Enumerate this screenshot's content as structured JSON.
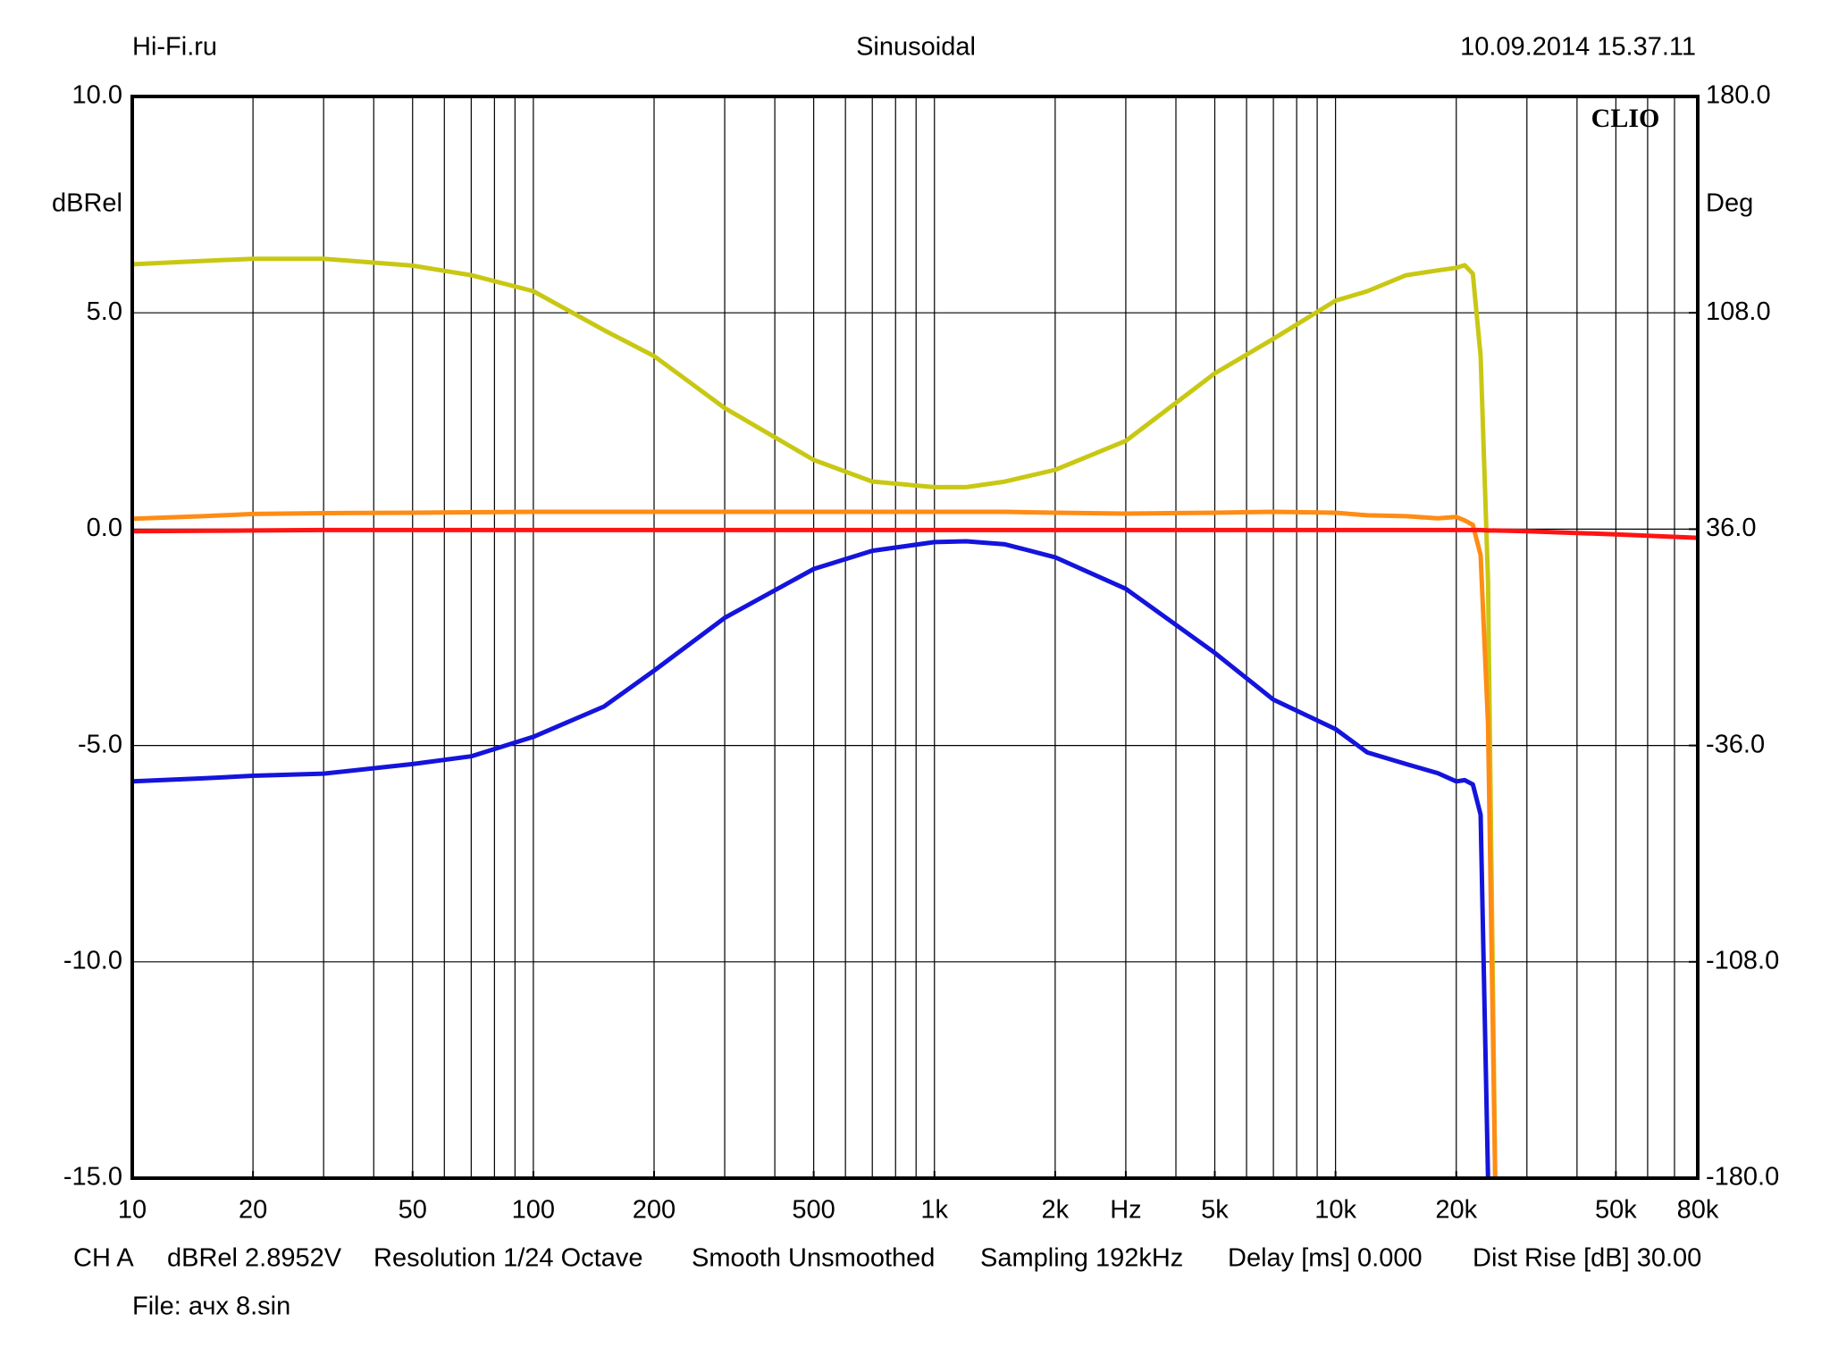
{
  "chart_data": {
    "type": "line",
    "header_left": "Hi-Fi.ru",
    "title": "Sinusoidal",
    "date": "10.09.2014 15.37.11",
    "logo": "CLIO",
    "ylabel": "dBRel",
    "y2label": "Deg",
    "footer": [
      "CH A",
      "dBRel 2.8952V",
      "Resolution 1/24 Octave",
      "Smooth Unsmoothed",
      "Sampling 192kHz",
      "Delay [ms] 0.000",
      "Dist Rise [dB] 30.00"
    ],
    "file": "File: ачх 8.sin",
    "xscale": "log",
    "grid": true,
    "xlim": [
      10,
      80000
    ],
    "xticks": [
      10,
      20,
      50,
      100,
      200,
      500,
      {
        "value": 1000,
        "label": "1k"
      },
      {
        "value": 2000,
        "label": "2k"
      },
      {
        "value": 3000,
        "label": "Hz"
      },
      {
        "value": 5000,
        "label": "5k"
      },
      {
        "value": 10000,
        "label": "10k"
      },
      {
        "value": 20000,
        "label": "20k"
      },
      {
        "value": 50000,
        "label": "50k"
      },
      {
        "value": 80000,
        "label": "80k"
      }
    ],
    "xgrid": [
      20,
      30,
      40,
      50,
      60,
      70,
      80,
      90,
      100,
      200,
      300,
      400,
      500,
      600,
      700,
      800,
      900,
      1000,
      2000,
      3000,
      4000,
      5000,
      6000,
      7000,
      8000,
      9000,
      10000,
      20000,
      30000,
      40000,
      50000,
      60000,
      70000
    ],
    "ylim": [
      -15,
      10
    ],
    "yticks": [
      {
        "value": -15,
        "label": "-15.0"
      },
      {
        "value": -10,
        "label": "-10.0"
      },
      {
        "value": -5,
        "label": "-5.0"
      },
      {
        "value": 0,
        "label": "0.0"
      },
      {
        "value": 5,
        "label": "5.0"
      },
      {
        "value": 10,
        "label": "10.0"
      }
    ],
    "y2lim": [
      -180,
      180
    ],
    "y2ticks": [
      {
        "value": -180,
        "label": "-180.0"
      },
      {
        "value": -108,
        "label": "-108.0"
      },
      {
        "value": -36,
        "label": "-36.0"
      },
      {
        "value": 36,
        "label": "36.0"
      },
      {
        "value": 108,
        "label": "108.0"
      },
      {
        "value": 180,
        "label": "180.0"
      }
    ],
    "x": [
      10,
      15,
      20,
      30,
      50,
      70,
      100,
      150,
      200,
      300,
      500,
      700,
      1000,
      1200,
      1500,
      2000,
      3000,
      5000,
      7000,
      10000,
      12000,
      15000,
      18000,
      20000,
      21000,
      22000,
      23000,
      24000,
      25000,
      30000,
      50000,
      80000
    ],
    "series": [
      {
        "color": "#c8c814",
        "values": [
          6.12,
          6.2,
          6.25,
          6.25,
          6.09,
          5.87,
          5.5,
          4.6,
          4.0,
          2.8,
          1.6,
          1.1,
          0.97,
          0.97,
          1.1,
          1.37,
          2.04,
          3.6,
          4.4,
          5.28,
          5.5,
          5.87,
          5.98,
          6.04,
          6.1,
          5.9,
          4.0,
          -1.2,
          -15,
          null,
          null,
          null
        ]
      },
      {
        "color": "#ff8c14",
        "values": [
          0.24,
          0.3,
          0.35,
          0.37,
          0.38,
          0.39,
          0.4,
          0.4,
          0.4,
          0.4,
          0.4,
          0.4,
          0.4,
          0.4,
          0.4,
          0.38,
          0.36,
          0.38,
          0.4,
          0.38,
          0.32,
          0.3,
          0.25,
          0.28,
          0.2,
          0.1,
          -0.6,
          -4.5,
          -15,
          null,
          null,
          null
        ]
      },
      {
        "color": "#ff1414",
        "values": [
          -0.05,
          -0.04,
          -0.03,
          -0.02,
          -0.02,
          -0.02,
          -0.02,
          -0.02,
          -0.02,
          -0.02,
          -0.02,
          -0.02,
          -0.02,
          -0.02,
          -0.02,
          -0.02,
          -0.02,
          -0.02,
          -0.02,
          -0.02,
          -0.02,
          -0.02,
          -0.02,
          -0.02,
          -0.02,
          -0.02,
          -0.02,
          -0.03,
          -0.03,
          -0.05,
          -0.12,
          -0.2
        ]
      },
      {
        "color": "#1414dc",
        "values": [
          -5.83,
          -5.76,
          -5.7,
          -5.65,
          -5.43,
          -5.25,
          -4.8,
          -4.1,
          -3.27,
          -2.05,
          -0.92,
          -0.5,
          -0.3,
          -0.28,
          -0.35,
          -0.65,
          -1.38,
          -2.86,
          -3.94,
          -4.62,
          -5.16,
          -5.43,
          -5.64,
          -5.83,
          -5.8,
          -5.9,
          -6.6,
          -15,
          null,
          null,
          null,
          null
        ]
      }
    ]
  }
}
